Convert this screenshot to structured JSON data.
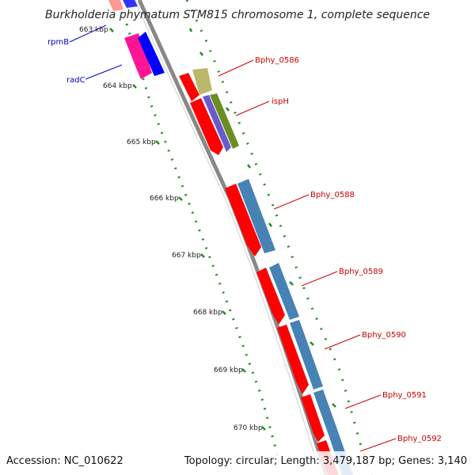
{
  "title": "Burkholderia phymatum STM815 chromosome 1, complete sequence",
  "footer": {
    "accession": "Accession: NC_010622",
    "topology": "Topology: circular; Length: 3,479,187 bp; Genes: 3,140"
  },
  "colors": {
    "backbone": "#888888",
    "forward_red": "#ff0000",
    "reverse_blue": "#0000ff",
    "steel_blue": "#4682b4",
    "olive": "#6b8e23",
    "khaki": "#bdb76b",
    "slate_blue": "#6a5acd",
    "magenta": "#ff1493",
    "pink": "#ff9999",
    "tick_green": "#228b22",
    "label_red": "#cc0000",
    "label_blue": "#0000cc"
  },
  "ticks": [
    {
      "label": "663 kbp"
    },
    {
      "label": "664 kbp"
    },
    {
      "label": "665 kbp"
    },
    {
      "label": "666 kbp"
    },
    {
      "label": "667 kbp"
    },
    {
      "label": "668 kbp"
    },
    {
      "label": "669 kbp"
    },
    {
      "label": "670 kbp"
    }
  ],
  "gene_labels": [
    {
      "text": "rpmB",
      "color": "label_blue"
    },
    {
      "text": "radC",
      "color": "label_blue"
    },
    {
      "text": "Bphy_0586",
      "color": "label_red"
    },
    {
      "text": "ispH",
      "color": "label_red"
    },
    {
      "text": "Bphy_0588",
      "color": "label_red"
    },
    {
      "text": "Bphy_0589",
      "color": "label_red"
    },
    {
      "text": "Bphy_0590",
      "color": "label_red"
    },
    {
      "text": "Bphy_0591",
      "color": "label_red"
    },
    {
      "text": "Bphy_0592",
      "color": "label_red"
    }
  ]
}
